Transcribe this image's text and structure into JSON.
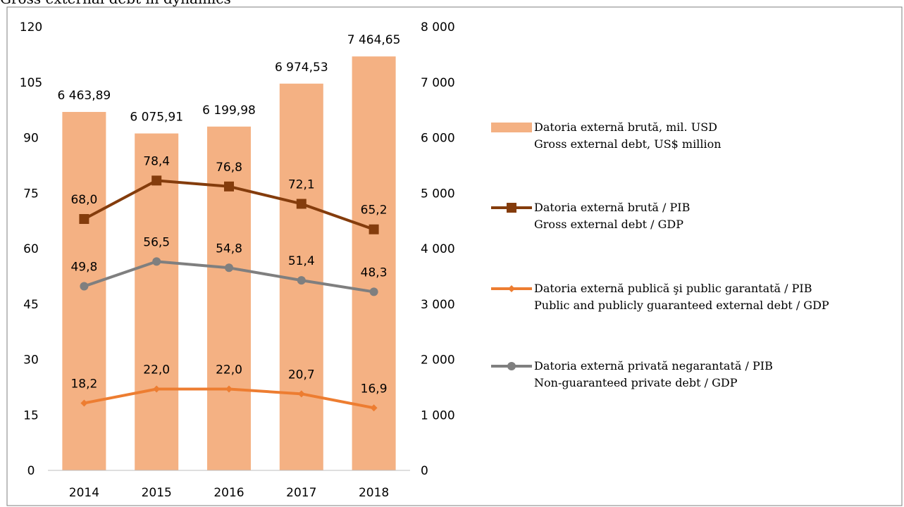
{
  "page": {
    "title": "Gross external debt in dynamics"
  },
  "chart_data": {
    "type": "bar",
    "categories": [
      "2014",
      "2015",
      "2016",
      "2017",
      "2018"
    ],
    "left_axis": {
      "min": 0,
      "max": 120,
      "step": 15,
      "ticks": [
        "0",
        "15",
        "30",
        "45",
        "60",
        "75",
        "90",
        "105",
        "120"
      ]
    },
    "right_axis": {
      "min": 0,
      "max": 8000,
      "step": 1000,
      "ticks": [
        "0",
        "1 000",
        "2 000",
        "3 000",
        "4 000",
        "5 000",
        "6 000",
        "7 000",
        "8 000"
      ]
    },
    "grid": false,
    "legend_position": "right",
    "series": [
      {
        "name": "Datoria externă brută, mil. USD / Gross external debt, US$ million",
        "legend_lines": [
          "Datoria externă brută, mil. USD",
          "Gross external debt, US$ million"
        ],
        "kind": "bar",
        "axis": "right",
        "color": "#f4b183",
        "values": [
          6463.89,
          6075.91,
          6199.98,
          6974.53,
          7464.65
        ],
        "labels": [
          "6 463,89",
          "6 075,91",
          "6 199,98",
          "6 974,53",
          "7 464,65"
        ]
      },
      {
        "name": "Datoria externă brută / PIB / Gross external debt / GDP",
        "legend_lines": [
          "Datoria externă brută / PIB",
          "Gross external debt / GDP"
        ],
        "kind": "line",
        "axis": "left",
        "color": "#843c0c",
        "marker": "square",
        "values": [
          68.0,
          78.4,
          76.8,
          72.1,
          65.2
        ],
        "labels": [
          "68,0",
          "78,4",
          "76,8",
          "72,1",
          "65,2"
        ]
      },
      {
        "name": "Datoria externă publică şi public garantată / PIB / Public and publicly guaranteed external debt / GDP",
        "legend_lines": [
          "Datoria externă publică şi public garantată / PIB",
          "Public and publicly guaranteed external debt / GDP"
        ],
        "kind": "line",
        "axis": "left",
        "color": "#ed7d31",
        "marker": "diamond",
        "values": [
          18.2,
          22.0,
          22.0,
          20.7,
          16.9
        ],
        "labels": [
          "18,2",
          "22,0",
          "22,0",
          "20,7",
          "16,9"
        ]
      },
      {
        "name": "Datoria externă privată negarantată / PIB / Non-guaranteed private debt / GDP",
        "legend_lines": [
          "Datoria externă privată negarantată / PIB",
          "Non-guaranteed private debt / GDP"
        ],
        "kind": "line",
        "axis": "left",
        "color": "#7f7f7f",
        "marker": "circle",
        "values": [
          49.8,
          56.5,
          54.8,
          51.4,
          48.3
        ],
        "labels": [
          "49,8",
          "56,5",
          "54,8",
          "51,4",
          "48,3"
        ]
      }
    ]
  }
}
